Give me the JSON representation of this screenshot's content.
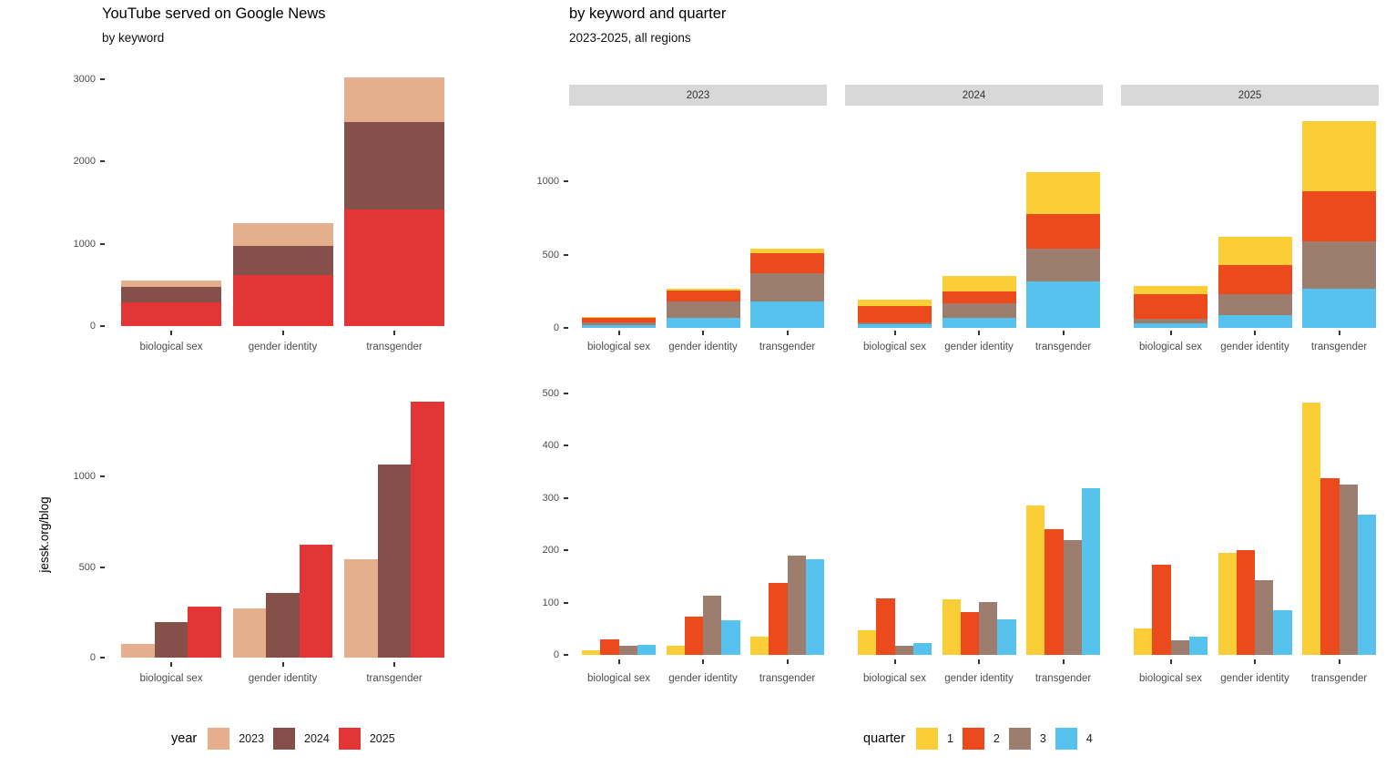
{
  "left": {
    "title": "YouTube served on Google News",
    "subtitle": "by keyword"
  },
  "right": {
    "title": "by keyword and quarter",
    "subtitle": "2023-2025, all regions"
  },
  "watermark": "jessk.org/blog",
  "categories": [
    "biological sex",
    "gender identity",
    "transgender"
  ],
  "facet_labels": [
    "2023",
    "2024",
    "2025"
  ],
  "legend_year": {
    "title": "year",
    "items": [
      {
        "label": "2023",
        "color": "#E5AE8C"
      },
      {
        "label": "2024",
        "color": "#854F4A"
      },
      {
        "label": "2025",
        "color": "#E23536"
      }
    ]
  },
  "legend_quarter": {
    "title": "quarter",
    "items": [
      {
        "label": "1",
        "color": "#FBCE38"
      },
      {
        "label": "2",
        "color": "#EC4A1C"
      },
      {
        "label": "3",
        "color": "#9C7D6E"
      },
      {
        "label": "4",
        "color": "#57C2EE"
      }
    ]
  },
  "chart_data": [
    {
      "id": "served-by-keyword-year-stacked",
      "type": "bar",
      "stacked": true,
      "title": "YouTube served on Google News",
      "subtitle": "by keyword",
      "categories": [
        "biological sex",
        "gender identity",
        "transgender"
      ],
      "series": [
        {
          "name": "2023",
          "color": "#E5AE8C",
          "values": [
            76,
            270,
            544
          ]
        },
        {
          "name": "2024",
          "color": "#854F4A",
          "values": [
            195,
            357,
            1063
          ]
        },
        {
          "name": "2025",
          "color": "#E23536",
          "values": [
            283,
            623,
            1413
          ]
        }
      ],
      "stack_order_bottom_to_top": [
        "2025",
        "2024",
        "2023"
      ],
      "yticks": [
        0,
        1000,
        2000,
        3000
      ],
      "ylim": [
        0,
        3160
      ],
      "grid": false,
      "legend_position": "bottom"
    },
    {
      "id": "served-by-keyword-year-dodged",
      "type": "bar",
      "stacked": false,
      "categories": [
        "biological sex",
        "gender identity",
        "transgender"
      ],
      "series": [
        {
          "name": "2023",
          "color": "#E5AE8C",
          "values": [
            76,
            270,
            544
          ]
        },
        {
          "name": "2024",
          "color": "#854F4A",
          "values": [
            195,
            357,
            1063
          ]
        },
        {
          "name": "2025",
          "color": "#E23536",
          "values": [
            283,
            623,
            1413
          ]
        }
      ],
      "yticks": [
        0,
        500,
        1000
      ],
      "ylim": [
        0,
        1443
      ],
      "grid": false,
      "legend_position": "bottom"
    },
    {
      "id": "served-by-keyword-quarter-stacked",
      "type": "bar",
      "stacked": true,
      "title": "by keyword and quarter",
      "subtitle": "2023-2025, all regions",
      "categories": [
        "biological sex",
        "gender identity",
        "transgender"
      ],
      "facet_variable": "year",
      "facets": [
        {
          "name": "2023",
          "series": [
            {
              "name": "1",
              "color": "#FBCE38",
              "values": [
                8,
                17,
                34
              ]
            },
            {
              "name": "2",
              "color": "#EC4A1C",
              "values": [
                30,
                73,
                137
              ]
            },
            {
              "name": "3",
              "color": "#9C7D6E",
              "values": [
                18,
                113,
                190
              ]
            },
            {
              "name": "4",
              "color": "#57C2EE",
              "values": [
                20,
                67,
                183
              ]
            }
          ]
        },
        {
          "name": "2024",
          "series": [
            {
              "name": "1",
              "color": "#FBCE38",
              "values": [
                47,
                107,
                285
              ]
            },
            {
              "name": "2",
              "color": "#EC4A1C",
              "values": [
                108,
                81,
                240
              ]
            },
            {
              "name": "3",
              "color": "#9C7D6E",
              "values": [
                18,
                101,
                220
              ]
            },
            {
              "name": "4",
              "color": "#57C2EE",
              "values": [
                22,
                68,
                318
              ]
            }
          ]
        },
        {
          "name": "2025",
          "series": [
            {
              "name": "1",
              "color": "#FBCE38",
              "values": [
                50,
                195,
                483
              ]
            },
            {
              "name": "2",
              "color": "#EC4A1C",
              "values": [
                172,
                200,
                337
              ]
            },
            {
              "name": "3",
              "color": "#9C7D6E",
              "values": [
                27,
                143,
                325
              ]
            },
            {
              "name": "4",
              "color": "#57C2EE",
              "values": [
                34,
                85,
                268
              ]
            }
          ]
        }
      ],
      "stack_order_bottom_to_top": [
        "4",
        "3",
        "2",
        "1"
      ],
      "yticks": [
        0,
        500,
        1000
      ],
      "ylim": [
        0,
        1460
      ],
      "grid": false,
      "legend_position": "bottom"
    },
    {
      "id": "served-by-keyword-quarter-dodged",
      "type": "bar",
      "stacked": false,
      "categories": [
        "biological sex",
        "gender identity",
        "transgender"
      ],
      "facet_variable": "year",
      "facets": [
        {
          "name": "2023",
          "series": [
            {
              "name": "1",
              "color": "#FBCE38",
              "values": [
                8,
                17,
                34
              ]
            },
            {
              "name": "2",
              "color": "#EC4A1C",
              "values": [
                30,
                73,
                137
              ]
            },
            {
              "name": "3",
              "color": "#9C7D6E",
              "values": [
                18,
                113,
                190
              ]
            },
            {
              "name": "4",
              "color": "#57C2EE",
              "values": [
                20,
                67,
                183
              ]
            }
          ]
        },
        {
          "name": "2024",
          "series": [
            {
              "name": "1",
              "color": "#FBCE38",
              "values": [
                47,
                107,
                285
              ]
            },
            {
              "name": "2",
              "color": "#EC4A1C",
              "values": [
                108,
                81,
                240
              ]
            },
            {
              "name": "3",
              "color": "#9C7D6E",
              "values": [
                18,
                101,
                220
              ]
            },
            {
              "name": "4",
              "color": "#57C2EE",
              "values": [
                22,
                68,
                318
              ]
            }
          ]
        },
        {
          "name": "2025",
          "series": [
            {
              "name": "1",
              "color": "#FBCE38",
              "values": [
                50,
                195,
                483
              ]
            },
            {
              "name": "2",
              "color": "#EC4A1C",
              "values": [
                172,
                200,
                337
              ]
            },
            {
              "name": "3",
              "color": "#9C7D6E",
              "values": [
                27,
                143,
                325
              ]
            },
            {
              "name": "4",
              "color": "#57C2EE",
              "values": [
                34,
                85,
                268
              ]
            }
          ]
        }
      ],
      "yticks": [
        0,
        100,
        200,
        300,
        400,
        500
      ],
      "ylim": [
        0,
        505
      ],
      "grid": false,
      "legend_position": "bottom"
    }
  ]
}
